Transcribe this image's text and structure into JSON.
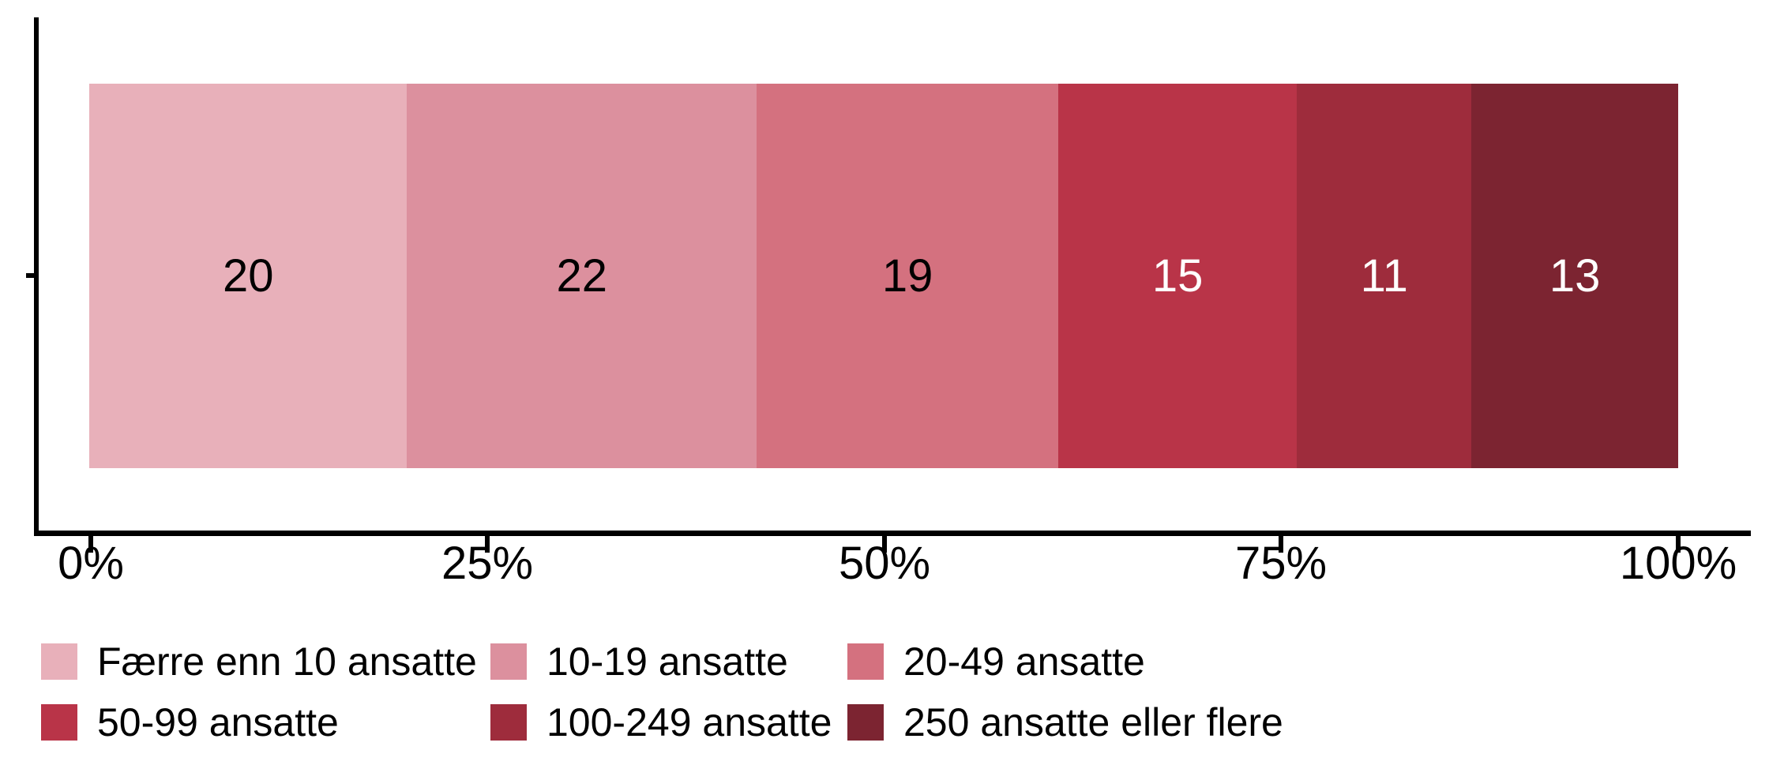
{
  "chart_data": {
    "type": "bar",
    "subtype": "horizontal-stacked",
    "title": "",
    "xlabel": "",
    "ylabel": "",
    "grid": false,
    "axis_color": "#000000",
    "categories": [
      "Færre enn 10 ansatte",
      "10-19 ansatte",
      "20-49 ansatte",
      "50-99 ansatte",
      "100-249 ansatte",
      "250 ansatte eller flere"
    ],
    "values": [
      20,
      22,
      19,
      15,
      11,
      13
    ],
    "value_labels": [
      "20",
      "22",
      "19",
      "15",
      "11",
      "13"
    ],
    "colors": [
      "#E8B0BA",
      "#DC909E",
      "#D4717F",
      "#B93448",
      "#9E2C3C",
      "#7C2431"
    ],
    "value_label_colors": [
      "#000000",
      "#000000",
      "#000000",
      "#FFFFFF",
      "#FFFFFF",
      "#FFFFFF"
    ],
    "x_axis": {
      "range": [
        0,
        100
      ],
      "tick_labels": [
        "0%",
        "25%",
        "50%",
        "75%",
        "100%"
      ]
    },
    "legend": {
      "position": "bottom",
      "rows": 2,
      "columns": 3
    }
  }
}
